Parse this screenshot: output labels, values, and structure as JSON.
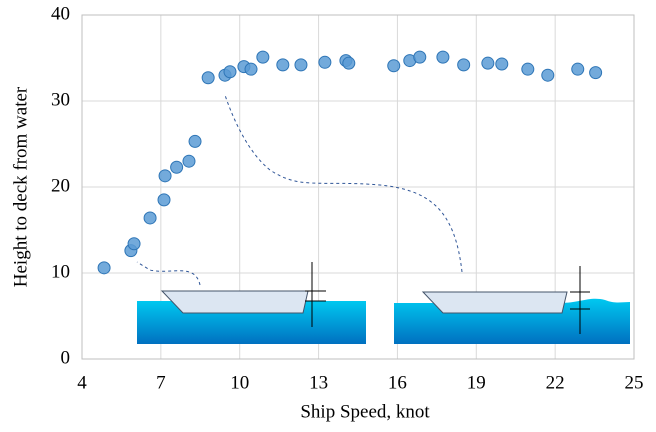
{
  "chart_data": {
    "type": "scatter",
    "x_label": "Ship Speed, knot",
    "y_label": "Height to deck from water",
    "color": "#5b9bd5",
    "x": [
      4.84,
      5.86,
      5.98,
      6.59,
      7.12,
      7.16,
      7.6,
      8.07,
      8.3,
      8.8,
      9.44,
      9.63,
      10.16,
      10.43,
      10.88,
      11.64,
      12.33,
      13.24,
      14.04,
      14.15,
      15.86,
      16.47,
      16.85,
      17.73,
      18.52,
      19.44,
      19.97,
      20.96,
      21.72,
      22.86,
      23.54
    ],
    "values": [
      10.6,
      12.6,
      13.4,
      16.4,
      18.5,
      21.3,
      22.3,
      23.0,
      25.3,
      32.7,
      33.0,
      33.4,
      34.0,
      33.7,
      35.1,
      34.2,
      34.2,
      34.5,
      34.7,
      34.4,
      34.1,
      34.7,
      35.1,
      35.1,
      34.2,
      34.4,
      34.3,
      33.7,
      33.0,
      33.7,
      33.3
    ],
    "xlim": [
      4,
      25
    ],
    "xticks": [
      4,
      7,
      10,
      13,
      16,
      19,
      22,
      25
    ],
    "ylim": [
      0,
      40
    ],
    "yticks": [
      0,
      10,
      20,
      30,
      40
    ],
    "grid": true
  }
}
